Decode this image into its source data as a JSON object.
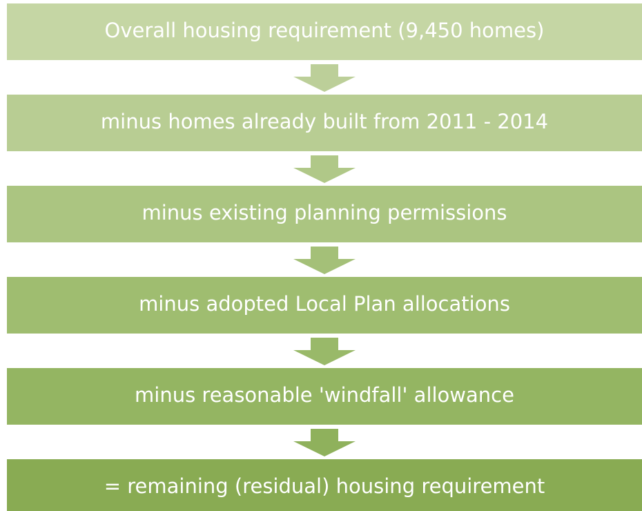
{
  "steps": [
    {
      "label": "Overall housing requirement (9,450 homes)"
    },
    {
      "label": "minus homes already built from 2011 - 2014"
    },
    {
      "label": "minus existing planning permissions"
    },
    {
      "label": "minus adopted Local Plan allocations"
    },
    {
      "label": "minus reasonable 'windfall' allowance"
    },
    {
      "label": "= remaining (residual) housing requirement"
    }
  ]
}
